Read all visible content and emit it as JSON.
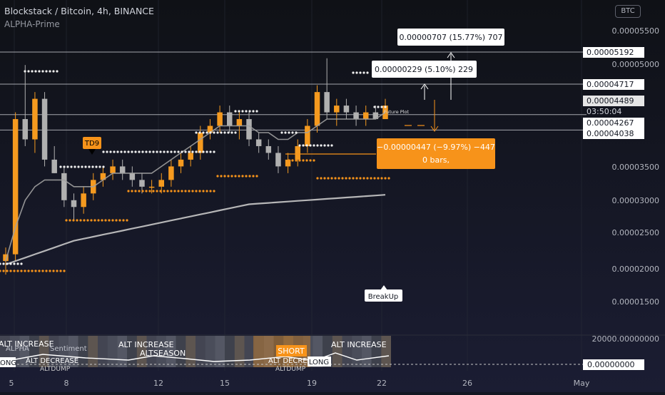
{
  "header": {
    "title": "Blockstack / Bitcoin, 4h, BINANCE",
    "indicator": "ALPHA-Prime",
    "currency_button": "BTC"
  },
  "colors": {
    "background": "#131722",
    "bull": "#f59a1f",
    "bear": "#b0b0b0",
    "orange_box": "#f7931a",
    "grid": "#2a2e39"
  },
  "price_axis": {
    "ticks": [
      "0.00005500",
      "0.00005000",
      "0.00003500",
      "0.00003000",
      "0.00002500",
      "0.00002000",
      "0.00001500"
    ],
    "levels": [
      {
        "label": "0.00005192",
        "value": 5.192e-05
      },
      {
        "label": "0.00004717",
        "value": 4.717e-05
      },
      {
        "label": "0.00004489",
        "value": 4.489e-05
      },
      {
        "label": "03:50:04",
        "value": null
      },
      {
        "label": "0.00004267",
        "value": 4.267e-05
      },
      {
        "label": "0.00004038",
        "value": 4.038e-05
      }
    ]
  },
  "time_axis": [
    "5",
    "8",
    "12",
    "15",
    "19",
    "22",
    "26",
    "May"
  ],
  "measure_boxes": {
    "upper": "0.00000707 (15.77%) 707",
    "middle": "0.00000229 (5.10%) 229",
    "lower_line1": "−0.00000447 (−9.97%) −447",
    "lower_line2": "0 bars,"
  },
  "annotations": {
    "td9": "TD9",
    "breakup": "BreakUp",
    "future_plot": "Future Plot"
  },
  "indicator_panel": {
    "axis_top": "20000.00000000",
    "axis_zero": "0.00000000",
    "labels": {
      "alt_increase_1": "ALT INCREASE",
      "alt_increase_2": "ALT INCREASE",
      "alt_increase_3": "ALT INCREASE",
      "altseason": "ALTSEASON",
      "alt_decrease_1": "ALT DECREASE",
      "alt_decrease_2": "ALT DECREASE",
      "altdump_1": "ALTDUMP",
      "altdump_2": "ALTDUMP",
      "short": "SHORT",
      "long_1": "LONG",
      "long_2": "LONG",
      "sentiment": "Sentiment",
      "alpha_partial": "ALPHA"
    }
  },
  "chart_data": {
    "type": "candlestick",
    "symbol": "Blockstack / Bitcoin",
    "timeframe": "4h",
    "exchange": "BINANCE",
    "candles": [
      {
        "o": 2.1e-05,
        "h": 2.3e-05,
        "l": 1.9e-05,
        "c": 2.2e-05
      },
      {
        "o": 2.2e-05,
        "h": 4.3e-05,
        "l": 2.1e-05,
        "c": 4.2e-05
      },
      {
        "o": 4.2e-05,
        "h": 5e-05,
        "l": 3.8e-05,
        "c": 3.9e-05
      },
      {
        "o": 3.9e-05,
        "h": 4.6e-05,
        "l": 3.7e-05,
        "c": 4.5e-05
      },
      {
        "o": 4.5e-05,
        "h": 4.6e-05,
        "l": 3.5e-05,
        "c": 3.6e-05
      },
      {
        "o": 3.6e-05,
        "h": 3.8e-05,
        "l": 3.4e-05,
        "c": 3.4e-05
      },
      {
        "o": 3.4e-05,
        "h": 3.5e-05,
        "l": 2.9e-05,
        "c": 3e-05
      },
      {
        "o": 3e-05,
        "h": 3.1e-05,
        "l": 2.7e-05,
        "c": 2.9e-05
      },
      {
        "o": 2.9e-05,
        "h": 3.2e-05,
        "l": 2.8e-05,
        "c": 3.1e-05
      },
      {
        "o": 3.1e-05,
        "h": 3.4e-05,
        "l": 3e-05,
        "c": 3.3e-05
      },
      {
        "o": 3.3e-05,
        "h": 3.5e-05,
        "l": 3.2e-05,
        "c": 3.4e-05
      },
      {
        "o": 3.4e-05,
        "h": 3.6e-05,
        "l": 3.3e-05,
        "c": 3.5e-05
      },
      {
        "o": 3.5e-05,
        "h": 3.6e-05,
        "l": 3.3e-05,
        "c": 3.4e-05
      },
      {
        "o": 3.4e-05,
        "h": 3.5e-05,
        "l": 3.2e-05,
        "c": 3.3e-05
      },
      {
        "o": 3.3e-05,
        "h": 3.4e-05,
        "l": 3.1e-05,
        "c": 3.2e-05
      },
      {
        "o": 3.2e-05,
        "h": 3.3e-05,
        "l": 3.1e-05,
        "c": 3.2e-05
      },
      {
        "o": 3.2e-05,
        "h": 3.4e-05,
        "l": 3.1e-05,
        "c": 3.3e-05
      },
      {
        "o": 3.3e-05,
        "h": 3.6e-05,
        "l": 3.2e-05,
        "c": 3.5e-05
      },
      {
        "o": 3.5e-05,
        "h": 3.7e-05,
        "l": 3.4e-05,
        "c": 3.6e-05
      },
      {
        "o": 3.6e-05,
        "h": 3.8e-05,
        "l": 3.5e-05,
        "c": 3.7e-05
      },
      {
        "o": 3.7e-05,
        "h": 4.1e-05,
        "l": 3.6e-05,
        "c": 4e-05
      },
      {
        "o": 4e-05,
        "h": 4.2e-05,
        "l": 3.9e-05,
        "c": 4.1e-05
      },
      {
        "o": 4.1e-05,
        "h": 4.4e-05,
        "l": 4e-05,
        "c": 4.3e-05
      },
      {
        "o": 4.3e-05,
        "h": 4.4e-05,
        "l": 4e-05,
        "c": 4.1e-05
      },
      {
        "o": 4.1e-05,
        "h": 4.3e-05,
        "l": 3.9e-05,
        "c": 4.2e-05
      },
      {
        "o": 4.2e-05,
        "h": 4.3e-05,
        "l": 3.8e-05,
        "c": 3.9e-05
      },
      {
        "o": 3.9e-05,
        "h": 4e-05,
        "l": 3.7e-05,
        "c": 3.8e-05
      },
      {
        "o": 3.8e-05,
        "h": 3.9e-05,
        "l": 3.6e-05,
        "c": 3.7e-05
      },
      {
        "o": 3.7e-05,
        "h": 3.8e-05,
        "l": 3.4e-05,
        "c": 3.5e-05
      },
      {
        "o": 3.5e-05,
        "h": 3.7e-05,
        "l": 3.4e-05,
        "c": 3.6e-05
      },
      {
        "o": 3.6e-05,
        "h": 3.9e-05,
        "l": 3.5e-05,
        "c": 3.8e-05
      },
      {
        "o": 3.8e-05,
        "h": 4.2e-05,
        "l": 3.7e-05,
        "c": 4.1e-05
      },
      {
        "o": 4.1e-05,
        "h": 4.7e-05,
        "l": 4e-05,
        "c": 4.6e-05
      },
      {
        "o": 4.6e-05,
        "h": 5.1e-05,
        "l": 4.2e-05,
        "c": 4.3e-05
      },
      {
        "o": 4.3e-05,
        "h": 4.5e-05,
        "l": 4.1e-05,
        "c": 4.4e-05
      },
      {
        "o": 4.4e-05,
        "h": 4.5e-05,
        "l": 4.2e-05,
        "c": 4.3e-05
      },
      {
        "o": 4.3e-05,
        "h": 4.4e-05,
        "l": 4.1e-05,
        "c": 4.2e-05
      },
      {
        "o": 4.2e-05,
        "h": 4.4e-05,
        "l": 4.1e-05,
        "c": 4.3e-05
      },
      {
        "o": 4.3e-05,
        "h": 4.4e-05,
        "l": 4.2e-05,
        "c": 4.2e-05
      },
      {
        "o": 4.2e-05,
        "h": 4.5e-05,
        "l": 4.2e-05,
        "c": 4.4e-05
      }
    ],
    "moving_averages": [
      {
        "name": "fast",
        "values": [
          2.1e-05,
          2.6e-05,
          3e-05,
          3.2e-05,
          3.3e-05,
          3.3e-05,
          3.3e-05,
          3.2e-05,
          3.2e-05,
          3.2e-05,
          3.3e-05,
          3.4e-05,
          3.4e-05,
          3.4e-05,
          3.4e-05,
          3.4e-05,
          3.5e-05,
          3.6e-05,
          3.7e-05,
          3.8e-05,
          3.9e-05,
          4e-05,
          4.1e-05,
          4.1e-05,
          4.1e-05,
          4.1e-05,
          4e-05,
          4e-05,
          3.9e-05,
          3.9e-05,
          4e-05,
          4e-05,
          4.1e-05,
          4.2e-05,
          4.2e-05,
          4.2e-05,
          4.2e-05,
          4.2e-05,
          4.2e-05,
          4.3e-05
        ]
      },
      {
        "name": "slow",
        "values": [
          2.05e-05,
          2.1e-05,
          2.15e-05,
          2.2e-05,
          2.25e-05,
          2.3e-05,
          2.35e-05,
          2.4e-05,
          2.43e-05,
          2.46e-05,
          2.49e-05,
          2.52e-05,
          2.55e-05,
          2.58e-05,
          2.61e-05,
          2.64e-05,
          2.67e-05,
          2.7e-05,
          2.73e-05,
          2.76e-05,
          2.79e-05,
          2.82e-05,
          2.85e-05,
          2.88e-05,
          2.91e-05,
          2.94e-05,
          2.95e-05,
          2.96e-05,
          2.97e-05,
          2.98e-05,
          2.99e-05,
          3e-05,
          3.01e-05,
          3.02e-05,
          3.03e-05,
          3.04e-05,
          3.05e-05,
          3.06e-05,
          3.07e-05,
          3.08e-05
        ]
      }
    ],
    "horizontal_levels": [
      5.192e-05,
      4.717e-05,
      4.489e-05,
      4.267e-05,
      4.038e-05
    ],
    "y_range": [
      1.15e-05,
      5.95e-05
    ]
  }
}
